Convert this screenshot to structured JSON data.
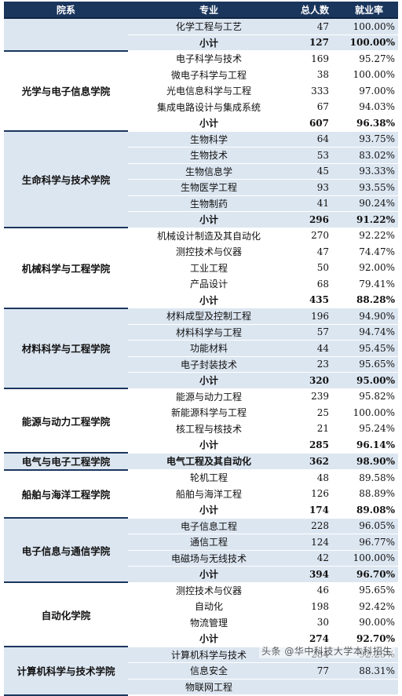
{
  "header": {
    "college": "院系",
    "major": "专业",
    "total": "总人数",
    "rate": "就业率"
  },
  "subtotal_label": "小计",
  "colors": {
    "header_bg": "#1b365d",
    "row_shade": "#dce6f1",
    "rule": "#1b365d"
  },
  "groups": [
    {
      "college": "",
      "shade": "blue",
      "rows": [
        {
          "major": "化学工程与工艺",
          "count": "47",
          "rate": "100.00%"
        },
        {
          "major": "小计",
          "count": "127",
          "rate": "100.00%",
          "subtotal": true
        }
      ]
    },
    {
      "college": "光学与电子信息学院",
      "shade": "white",
      "rows": [
        {
          "major": "电子科学与技术",
          "count": "169",
          "rate": "95.27%"
        },
        {
          "major": "微电子科学与工程",
          "count": "38",
          "rate": "100.00%"
        },
        {
          "major": "光电信息科学与工程",
          "count": "333",
          "rate": "97.00%"
        },
        {
          "major": "集成电路设计与集成系统",
          "count": "67",
          "rate": "94.03%"
        },
        {
          "major": "小计",
          "count": "607",
          "rate": "96.38%",
          "subtotal": true
        }
      ]
    },
    {
      "college": "生命科学与技术学院",
      "shade": "blue",
      "rows": [
        {
          "major": "生物科学",
          "count": "64",
          "rate": "93.75%"
        },
        {
          "major": "生物技术",
          "count": "53",
          "rate": "83.02%"
        },
        {
          "major": "生物信息学",
          "count": "45",
          "rate": "93.33%"
        },
        {
          "major": "生物医学工程",
          "count": "93",
          "rate": "93.55%"
        },
        {
          "major": "生物制药",
          "count": "41",
          "rate": "90.24%"
        },
        {
          "major": "小计",
          "count": "296",
          "rate": "91.22%",
          "subtotal": true
        }
      ]
    },
    {
      "college": "机械科学与工程学院",
      "shade": "white",
      "rows": [
        {
          "major": "机械设计制造及其自动化",
          "count": "270",
          "rate": "92.22%"
        },
        {
          "major": "测控技术与仪器",
          "count": "47",
          "rate": "74.47%"
        },
        {
          "major": "工业工程",
          "count": "50",
          "rate": "92.00%"
        },
        {
          "major": "产品设计",
          "count": "68",
          "rate": "79.41%"
        },
        {
          "major": "小计",
          "count": "435",
          "rate": "88.28%",
          "subtotal": true
        }
      ]
    },
    {
      "college": "材料科学与工程学院",
      "shade": "blue",
      "rows": [
        {
          "major": "材料成型及控制工程",
          "count": "196",
          "rate": "94.90%"
        },
        {
          "major": "材料科学与工程",
          "count": "57",
          "rate": "94.74%"
        },
        {
          "major": "功能材料",
          "count": "44",
          "rate": "95.45%"
        },
        {
          "major": "电子封装技术",
          "count": "23",
          "rate": "95.65%"
        },
        {
          "major": "小计",
          "count": "320",
          "rate": "95.00%",
          "subtotal": true
        }
      ]
    },
    {
      "college": "能源与动力工程学院",
      "shade": "white",
      "rows": [
        {
          "major": "能源与动力工程",
          "count": "239",
          "rate": "95.82%"
        },
        {
          "major": "新能源科学与工程",
          "count": "25",
          "rate": "100.00%"
        },
        {
          "major": "核工程与核技术",
          "count": "21",
          "rate": "95.24%"
        },
        {
          "major": "小计",
          "count": "285",
          "rate": "96.14%",
          "subtotal": true
        }
      ]
    },
    {
      "college": "电气与电子工程学院",
      "shade": "blue",
      "rows": [
        {
          "major": "电气工程及其自动化",
          "count": "362",
          "rate": "98.90%",
          "subtotal": true
        }
      ]
    },
    {
      "college": "船舶与海洋工程学院",
      "shade": "white",
      "rows": [
        {
          "major": "轮机工程",
          "count": "48",
          "rate": "89.58%"
        },
        {
          "major": "船舶与海洋工程",
          "count": "126",
          "rate": "88.89%"
        },
        {
          "major": "小计",
          "count": "174",
          "rate": "89.08%",
          "subtotal": true
        }
      ]
    },
    {
      "college": "电子信息与通信学院",
      "shade": "blue",
      "rows": [
        {
          "major": "电子信息工程",
          "count": "228",
          "rate": "96.05%"
        },
        {
          "major": "通信工程",
          "count": "124",
          "rate": "96.77%"
        },
        {
          "major": "电磁场与无线技术",
          "count": "42",
          "rate": "100.00%"
        },
        {
          "major": "小计",
          "count": "394",
          "rate": "96.70%",
          "subtotal": true
        }
      ]
    },
    {
      "college": "自动化学院",
      "shade": "white",
      "rows": [
        {
          "major": "测控技术与仪器",
          "count": "46",
          "rate": "95.65%"
        },
        {
          "major": "自动化",
          "count": "198",
          "rate": "92.42%"
        },
        {
          "major": "物流管理",
          "count": "30",
          "rate": "90.00%"
        },
        {
          "major": "小计",
          "count": "274",
          "rate": "92.70%",
          "subtotal": true
        }
      ]
    },
    {
      "college": "计算机科学与技术学院",
      "shade": "blue",
      "rows": [
        {
          "major": "计算机科学与技术",
          "count": "284",
          "rate": "92.25%"
        },
        {
          "major": "信息安全",
          "count": "77",
          "rate": "88.31%"
        },
        {
          "major": "物联网工程",
          "count": "",
          "rate": ""
        }
      ]
    }
  ],
  "watermark": "头条 @华中科技大学本科招生"
}
